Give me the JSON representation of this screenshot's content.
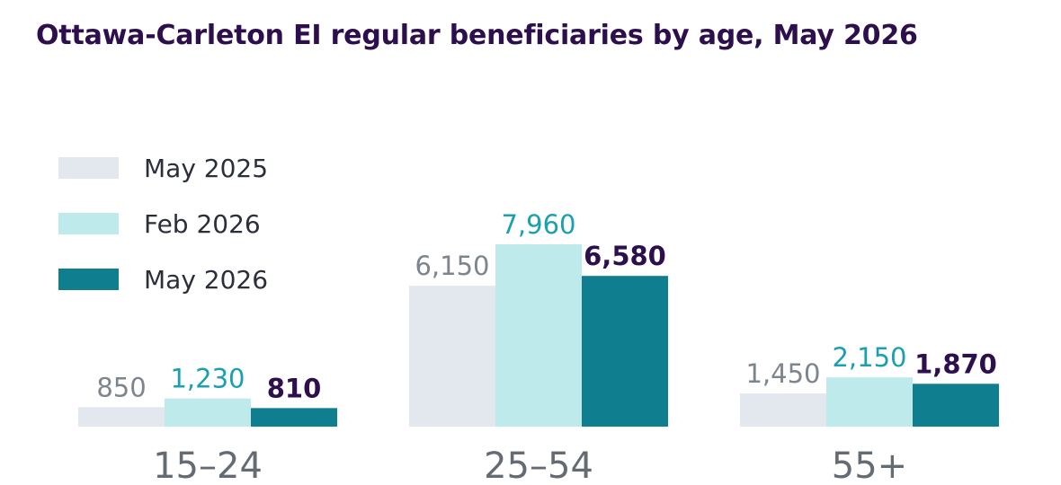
{
  "colors": {
    "title": "#2e0f4d",
    "may2025": "#e3e8ef",
    "feb2026": "#bfeaec",
    "may2026": "#0f7f8f",
    "label_may2025": "#7c858d",
    "label_feb2026": "#1aa0b0",
    "label_may2026": "#2e0f4d",
    "category_text": "#646b73",
    "legend_text": "#2a2f3a"
  },
  "chart_data": {
    "type": "bar",
    "title": "Ottawa-Carleton EI regular beneficiaries by age, May 2026",
    "xlabel": "",
    "ylabel": "",
    "categories": [
      "15–24",
      "25–54",
      "55+"
    ],
    "series": [
      {
        "name": "May 2025",
        "values": [
          850,
          6150,
          1450
        ],
        "labels": [
          "850",
          "6,150",
          "1,450"
        ]
      },
      {
        "name": "Feb 2026",
        "values": [
          1230,
          7960,
          2150
        ],
        "labels": [
          "1,230",
          "7,960",
          "2,150"
        ]
      },
      {
        "name": "May 2026",
        "values": [
          810,
          6580,
          1870
        ],
        "labels": [
          "810",
          "6,580",
          "1,870"
        ]
      }
    ],
    "ylim": [
      0,
      7960
    ],
    "grid": false,
    "legend_position": "top-left"
  }
}
